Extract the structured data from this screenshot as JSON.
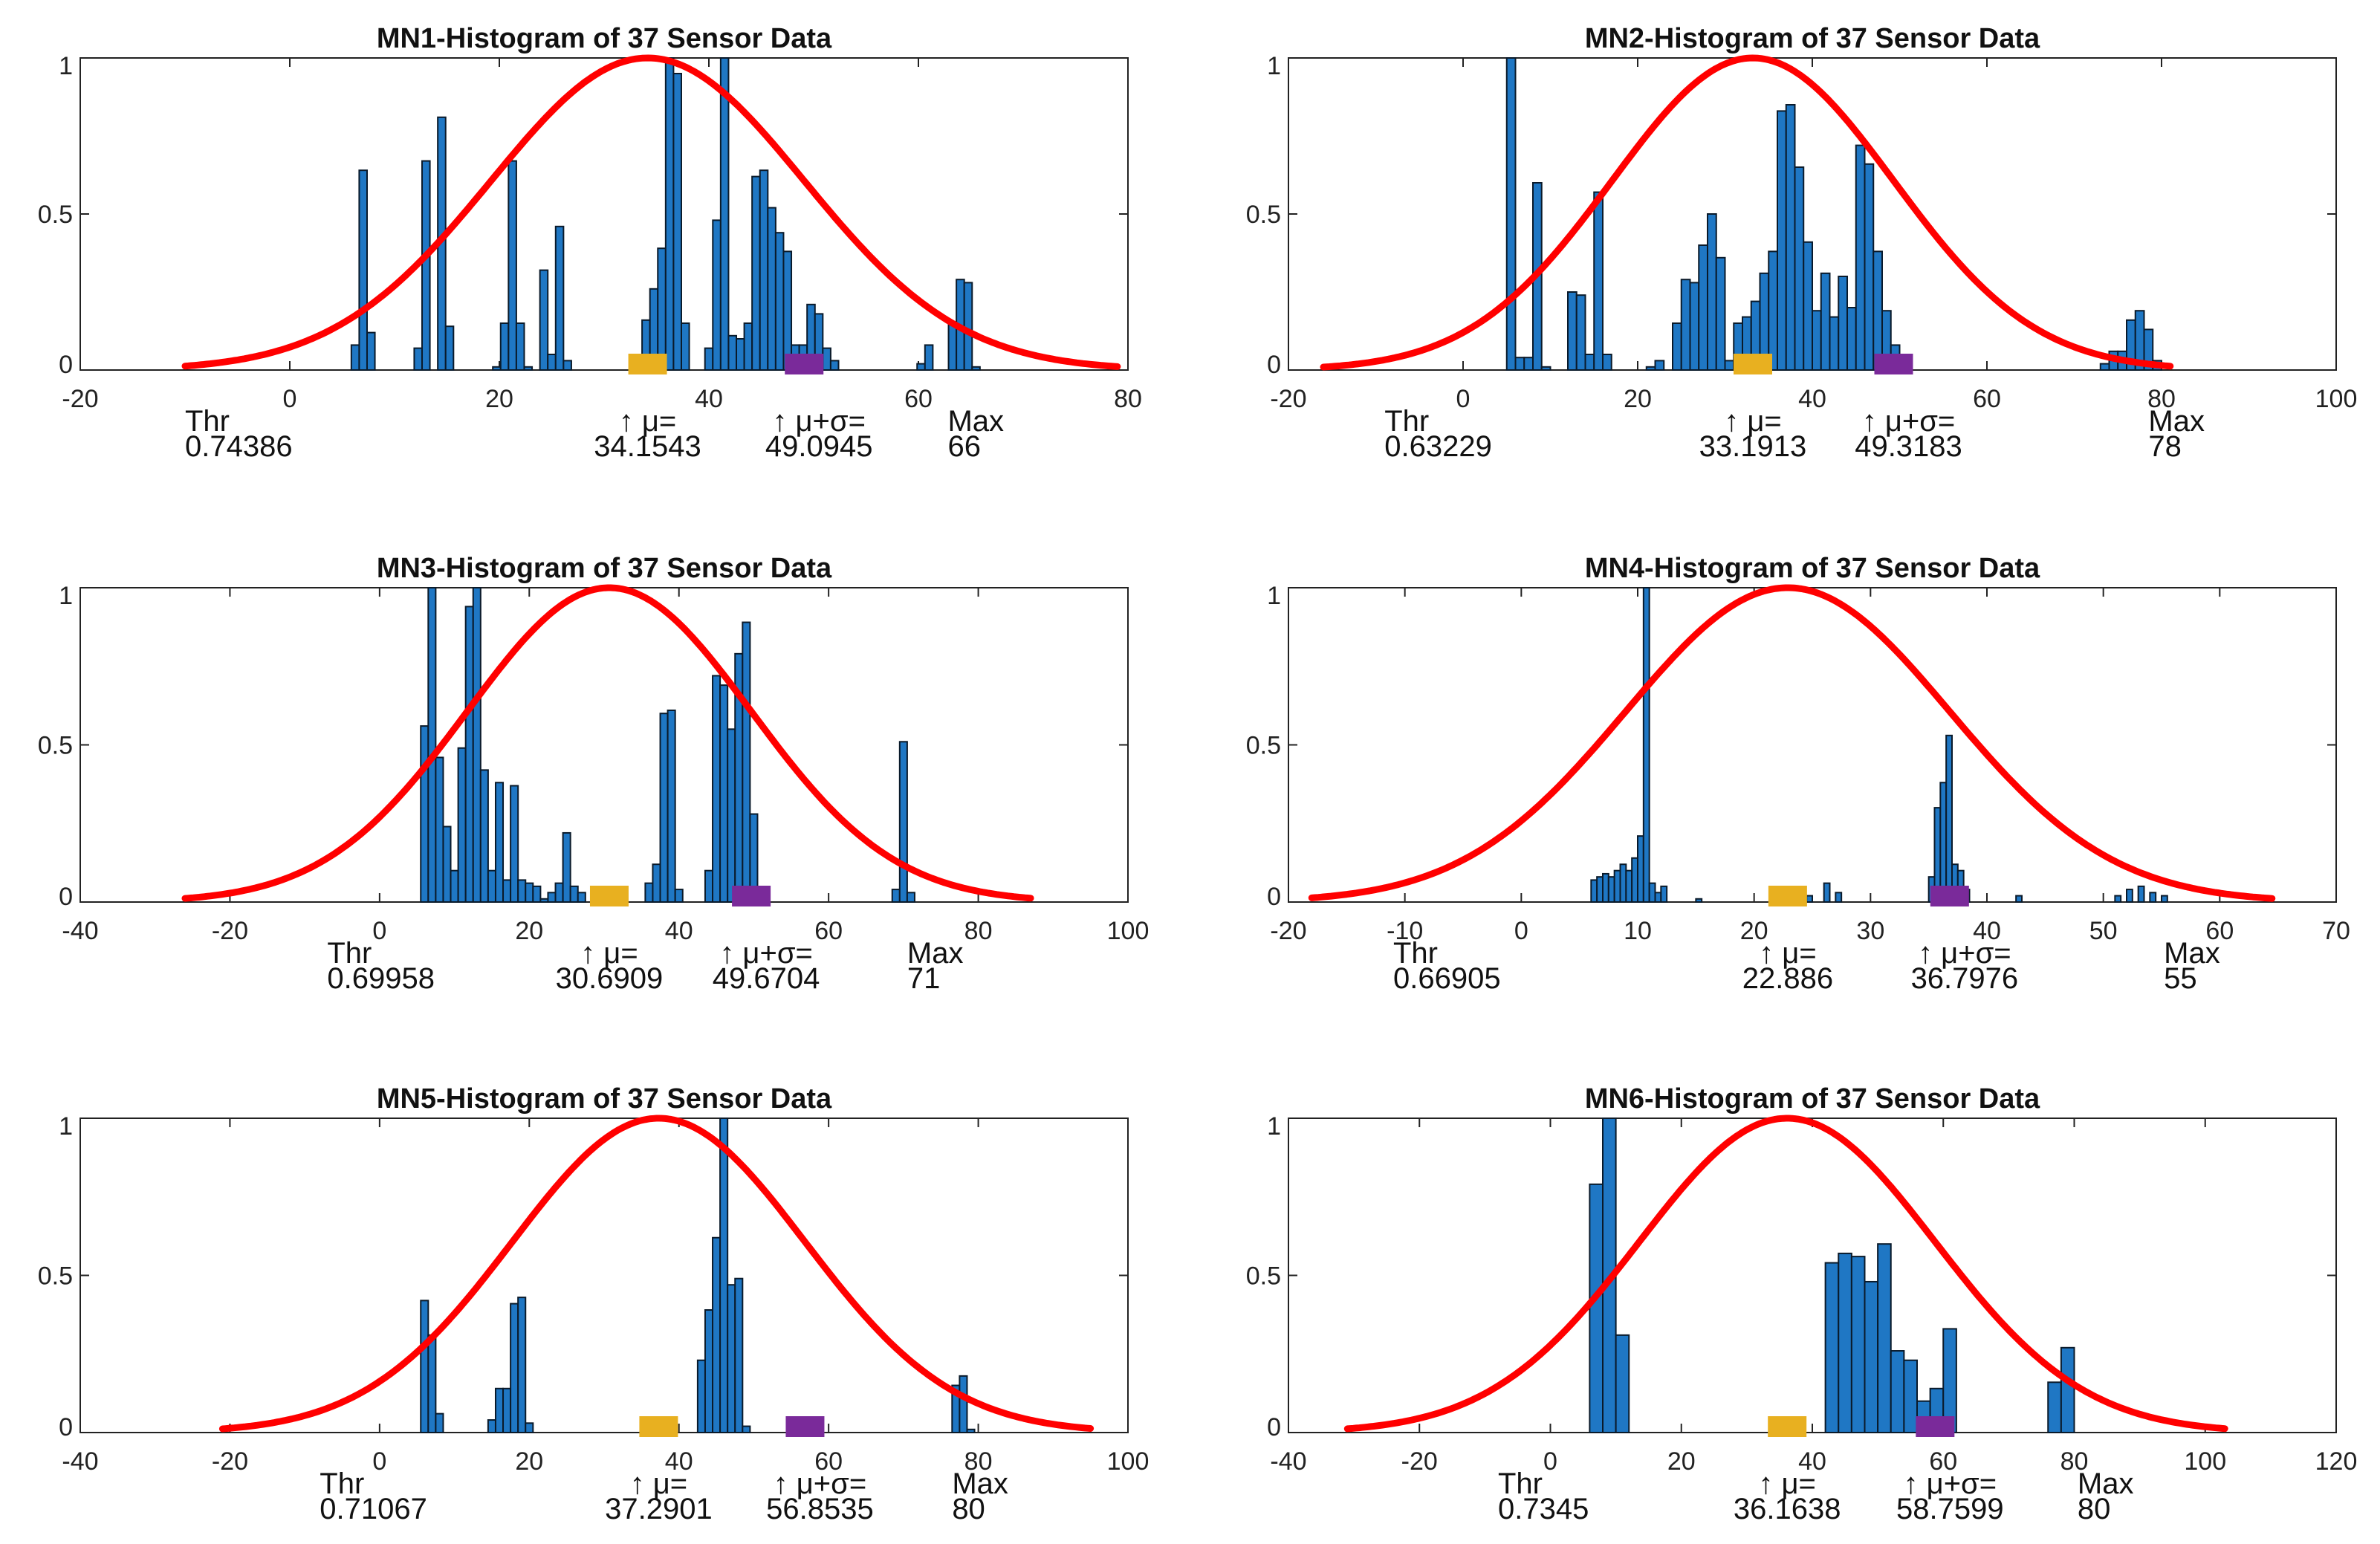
{
  "colors": {
    "bar": "#1f77c4",
    "bar_edge": "#0a1a2a",
    "curve": "#ff0000",
    "mu_marker": "#e8b020",
    "sigma_marker": "#7a2a9a",
    "axis": "#222222"
  },
  "chart_data": [
    {
      "type": "bar",
      "title": "MN1-Histogram of 37 Sensor Data",
      "xlim": [
        -20,
        80
      ],
      "ylim": [
        0,
        1
      ],
      "xticks": [
        "-20",
        "0",
        "20",
        "40",
        "60",
        "80"
      ],
      "yticks": [
        "0",
        "0.5",
        "1"
      ],
      "curve": {
        "mu": 34.1543,
        "sigma": 14.9402,
        "x_range": [
          -10,
          79
        ]
      },
      "bars": [
        [
          6.25,
          0.08
        ],
        [
          7,
          0.64
        ],
        [
          7.75,
          0.12
        ],
        [
          12.25,
          0.07
        ],
        [
          13,
          0.67
        ],
        [
          14.5,
          0.81
        ],
        [
          15.25,
          0.14
        ],
        [
          19.75,
          0.01
        ],
        [
          20.5,
          0.15
        ],
        [
          21.25,
          0.67
        ],
        [
          22,
          0.15
        ],
        [
          22.75,
          0.01
        ],
        [
          24.25,
          0.32
        ],
        [
          25,
          0.05
        ],
        [
          25.75,
          0.46
        ],
        [
          26.5,
          0.03
        ],
        [
          34,
          0.16
        ],
        [
          34.75,
          0.26
        ],
        [
          35.5,
          0.39
        ],
        [
          36.25,
          1.0
        ],
        [
          37,
          0.95
        ],
        [
          37.75,
          0.15
        ],
        [
          40,
          0.07
        ],
        [
          40.75,
          0.48
        ],
        [
          41.5,
          1.0
        ],
        [
          42.25,
          0.11
        ],
        [
          43,
          0.1
        ],
        [
          43.75,
          0.15
        ],
        [
          44.5,
          0.62
        ],
        [
          45.25,
          0.64
        ],
        [
          46,
          0.52
        ],
        [
          46.75,
          0.44
        ],
        [
          47.5,
          0.38
        ],
        [
          48.25,
          0.08
        ],
        [
          49,
          0.08
        ],
        [
          49.75,
          0.21
        ],
        [
          50.5,
          0.18
        ],
        [
          51.25,
          0.07
        ],
        [
          52,
          0.03
        ],
        [
          60.25,
          0.02
        ],
        [
          61,
          0.08
        ],
        [
          63.25,
          0.15
        ],
        [
          64,
          0.29
        ],
        [
          64.75,
          0.28
        ],
        [
          65.5,
          0.01
        ]
      ],
      "annotations": {
        "thr_label": "Thr",
        "thr_value": "0.74386",
        "mu_label": "↑ μ=",
        "mu_value": "34.1543",
        "sigma_label": "↑ μ+σ=",
        "sigma_value": "49.0945",
        "max_label": "Max",
        "max_value": "66"
      }
    },
    {
      "type": "bar",
      "title": "MN2-Histogram of 37 Sensor Data",
      "xlim": [
        -20,
        100
      ],
      "ylim": [
        0,
        1
      ],
      "xticks": [
        "-20",
        "0",
        "20",
        "40",
        "60",
        "80",
        "100"
      ],
      "yticks": [
        "0",
        "0.5",
        "1"
      ],
      "curve": {
        "mu": 33.1913,
        "sigma": 16.127,
        "x_range": [
          -16,
          81
        ]
      },
      "bars": [
        [
          5.5,
          1.0
        ],
        [
          6.5,
          0.04
        ],
        [
          7.5,
          0.04
        ],
        [
          8.5,
          0.6
        ],
        [
          9.5,
          0.01
        ],
        [
          12.5,
          0.25
        ],
        [
          13.5,
          0.24
        ],
        [
          14.5,
          0.05
        ],
        [
          15.5,
          0.57
        ],
        [
          16.5,
          0.05
        ],
        [
          21.5,
          0.01
        ],
        [
          22.5,
          0.03
        ],
        [
          24.5,
          0.15
        ],
        [
          25.5,
          0.29
        ],
        [
          26.5,
          0.28
        ],
        [
          27.5,
          0.4
        ],
        [
          28.5,
          0.5
        ],
        [
          29.5,
          0.36
        ],
        [
          30.5,
          0.03
        ],
        [
          31.5,
          0.15
        ],
        [
          32.5,
          0.17
        ],
        [
          33.5,
          0.22
        ],
        [
          34.5,
          0.31
        ],
        [
          35.5,
          0.38
        ],
        [
          36.5,
          0.83
        ],
        [
          37.5,
          0.85
        ],
        [
          38.5,
          0.65
        ],
        [
          39.5,
          0.41
        ],
        [
          40.5,
          0.19
        ],
        [
          41.5,
          0.31
        ],
        [
          42.5,
          0.17
        ],
        [
          43.5,
          0.3
        ],
        [
          44.5,
          0.2
        ],
        [
          45.5,
          0.72
        ],
        [
          46.5,
          0.66
        ],
        [
          47.5,
          0.38
        ],
        [
          48.5,
          0.19
        ],
        [
          49.5,
          0.08
        ],
        [
          73.5,
          0.02
        ],
        [
          74.5,
          0.06
        ],
        [
          75.5,
          0.06
        ],
        [
          76.5,
          0.16
        ],
        [
          77.5,
          0.19
        ],
        [
          78.5,
          0.13
        ],
        [
          79.5,
          0.03
        ]
      ],
      "annotations": {
        "thr_label": "Thr",
        "thr_value": "0.63229",
        "mu_label": "↑ μ=",
        "mu_value": "33.1913",
        "sigma_label": "↑ μ+σ=",
        "sigma_value": "49.3183",
        "max_label": "Max",
        "max_value": "78"
      }
    },
    {
      "type": "bar",
      "title": "MN3-Histogram of 37 Sensor Data",
      "xlim": [
        -40,
        100
      ],
      "ylim": [
        0,
        1
      ],
      "xticks": [
        "-40",
        "-20",
        "0",
        "20",
        "40",
        "60",
        "80",
        "100"
      ],
      "yticks": [
        "0",
        "0.5",
        "1"
      ],
      "curve": {
        "mu": 30.6909,
        "sigma": 18.9795,
        "x_range": [
          -26,
          87
        ]
      },
      "bars": [
        [
          6,
          0.56
        ],
        [
          7,
          1.0
        ],
        [
          8,
          0.46
        ],
        [
          9,
          0.24
        ],
        [
          10,
          0.1
        ],
        [
          11,
          0.49
        ],
        [
          12,
          0.94
        ],
        [
          13,
          1.0
        ],
        [
          14,
          0.42
        ],
        [
          15,
          0.1
        ],
        [
          16,
          0.38
        ],
        [
          17,
          0.07
        ],
        [
          18,
          0.37
        ],
        [
          19,
          0.07
        ],
        [
          20,
          0.06
        ],
        [
          21,
          0.05
        ],
        [
          22,
          0.01
        ],
        [
          23,
          0.03
        ],
        [
          24,
          0.06
        ],
        [
          25,
          0.22
        ],
        [
          26,
          0.05
        ],
        [
          27,
          0.03
        ],
        [
          36,
          0.06
        ],
        [
          37,
          0.12
        ],
        [
          38,
          0.6
        ],
        [
          39,
          0.61
        ],
        [
          40,
          0.04
        ],
        [
          44,
          0.1
        ],
        [
          45,
          0.72
        ],
        [
          46,
          0.69
        ],
        [
          47,
          0.55
        ],
        [
          48,
          0.79
        ],
        [
          49,
          0.89
        ],
        [
          50,
          0.28
        ],
        [
          51,
          0.02
        ],
        [
          69,
          0.04
        ],
        [
          70,
          0.51
        ],
        [
          71,
          0.03
        ]
      ],
      "annotations": {
        "thr_label": "Thr",
        "thr_value": "0.69958",
        "mu_label": "↑ μ=",
        "mu_value": "30.6909",
        "sigma_label": "↑ μ+σ=",
        "sigma_value": "49.6704",
        "max_label": "Max",
        "max_value": "71"
      }
    },
    {
      "type": "bar",
      "title": "MN4-Histogram of 37 Sensor Data",
      "xlim": [
        -20,
        70
      ],
      "ylim": [
        0,
        1
      ],
      "xticks": [
        "-20",
        "-10",
        "0",
        "10",
        "20",
        "30",
        "40",
        "50",
        "60",
        "70"
      ],
      "yticks": [
        "0",
        "0.5",
        "1"
      ],
      "curve": {
        "mu": 22.886,
        "sigma": 13.9116,
        "x_range": [
          -18,
          64.5
        ]
      },
      "bars": [
        [
          6.25,
          0.07
        ],
        [
          6.75,
          0.08
        ],
        [
          7.25,
          0.09
        ],
        [
          7.75,
          0.08
        ],
        [
          8.25,
          0.1
        ],
        [
          8.75,
          0.12
        ],
        [
          9.25,
          0.1
        ],
        [
          9.75,
          0.14
        ],
        [
          10.25,
          0.21
        ],
        [
          10.75,
          1.0
        ],
        [
          11.25,
          0.06
        ],
        [
          11.75,
          0.03
        ],
        [
          12.25,
          0.05
        ],
        [
          15.25,
          0.01
        ],
        [
          24.75,
          0.02
        ],
        [
          26.25,
          0.06
        ],
        [
          27.25,
          0.03
        ],
        [
          35.25,
          0.08
        ],
        [
          35.75,
          0.3
        ],
        [
          36.25,
          0.38
        ],
        [
          36.75,
          0.53
        ],
        [
          37.25,
          0.12
        ],
        [
          37.75,
          0.1
        ],
        [
          38.25,
          0.04
        ],
        [
          42.75,
          0.02
        ],
        [
          51.25,
          0.02
        ],
        [
          52.25,
          0.04
        ],
        [
          53.25,
          0.05
        ],
        [
          54.25,
          0.03
        ],
        [
          55.25,
          0.02
        ]
      ],
      "annotations": {
        "thr_label": "Thr",
        "thr_value": "0.66905",
        "mu_label": "↑ μ=",
        "mu_value": "22.886",
        "sigma_label": "↑ μ+σ=",
        "sigma_value": "36.7976",
        "max_label": "Max",
        "max_value": "55"
      }
    },
    {
      "type": "bar",
      "title": "MN5-Histogram of 37 Sensor Data",
      "xlim": [
        -40,
        100
      ],
      "ylim": [
        0,
        1
      ],
      "xticks": [
        "-40",
        "-20",
        "0",
        "20",
        "40",
        "60",
        "80",
        "100"
      ],
      "yticks": [
        "0",
        "0.5",
        "1"
      ],
      "curve": {
        "mu": 37.2901,
        "sigma": 19.5634,
        "x_range": [
          -21,
          95
        ]
      },
      "bars": [
        [
          6,
          0.42
        ],
        [
          7,
          0.31
        ],
        [
          8,
          0.06
        ],
        [
          15,
          0.04
        ],
        [
          16,
          0.14
        ],
        [
          17,
          0.14
        ],
        [
          18,
          0.41
        ],
        [
          19,
          0.43
        ],
        [
          20,
          0.03
        ],
        [
          43,
          0.23
        ],
        [
          44,
          0.39
        ],
        [
          45,
          0.62
        ],
        [
          46,
          1.0
        ],
        [
          47,
          0.47
        ],
        [
          48,
          0.49
        ],
        [
          49,
          0.02
        ],
        [
          77,
          0.15
        ],
        [
          78,
          0.18
        ],
        [
          79,
          0.01
        ]
      ],
      "annotations": {
        "thr_label": "Thr",
        "thr_value": "0.71067",
        "mu_label": "↑ μ=",
        "mu_value": "37.2901",
        "sigma_label": "↑ μ+σ=",
        "sigma_value": "56.8535",
        "max_label": "Max",
        "max_value": "80"
      }
    },
    {
      "type": "bar",
      "title": "MN6-Histogram of 37 Sensor Data",
      "xlim": [
        -40,
        120
      ],
      "ylim": [
        0,
        1
      ],
      "xticks": [
        "-40",
        "-20",
        "0",
        "20",
        "40",
        "60",
        "80",
        "100",
        "120"
      ],
      "yticks": [
        "0",
        "0.5",
        "1"
      ],
      "curve": {
        "mu": 36.1638,
        "sigma": 22.5961,
        "x_range": [
          -31,
          103
        ]
      },
      "bars": [
        [
          7,
          0.79
        ],
        [
          9,
          1.0
        ],
        [
          11,
          0.31
        ],
        [
          43,
          0.54
        ],
        [
          45,
          0.57
        ],
        [
          47,
          0.56
        ],
        [
          49,
          0.48
        ],
        [
          51,
          0.6
        ],
        [
          53,
          0.26
        ],
        [
          55,
          0.23
        ],
        [
          57,
          0.1
        ],
        [
          59,
          0.14
        ],
        [
          61,
          0.33
        ],
        [
          77,
          0.16
        ],
        [
          79,
          0.27
        ]
      ],
      "annotations": {
        "thr_label": "Thr",
        "thr_value": "0.7345",
        "mu_label": "↑ μ=",
        "mu_value": "36.1638",
        "sigma_label": "↑ μ+σ=",
        "sigma_value": "58.7599",
        "max_label": "Max",
        "max_value": "80"
      }
    }
  ]
}
